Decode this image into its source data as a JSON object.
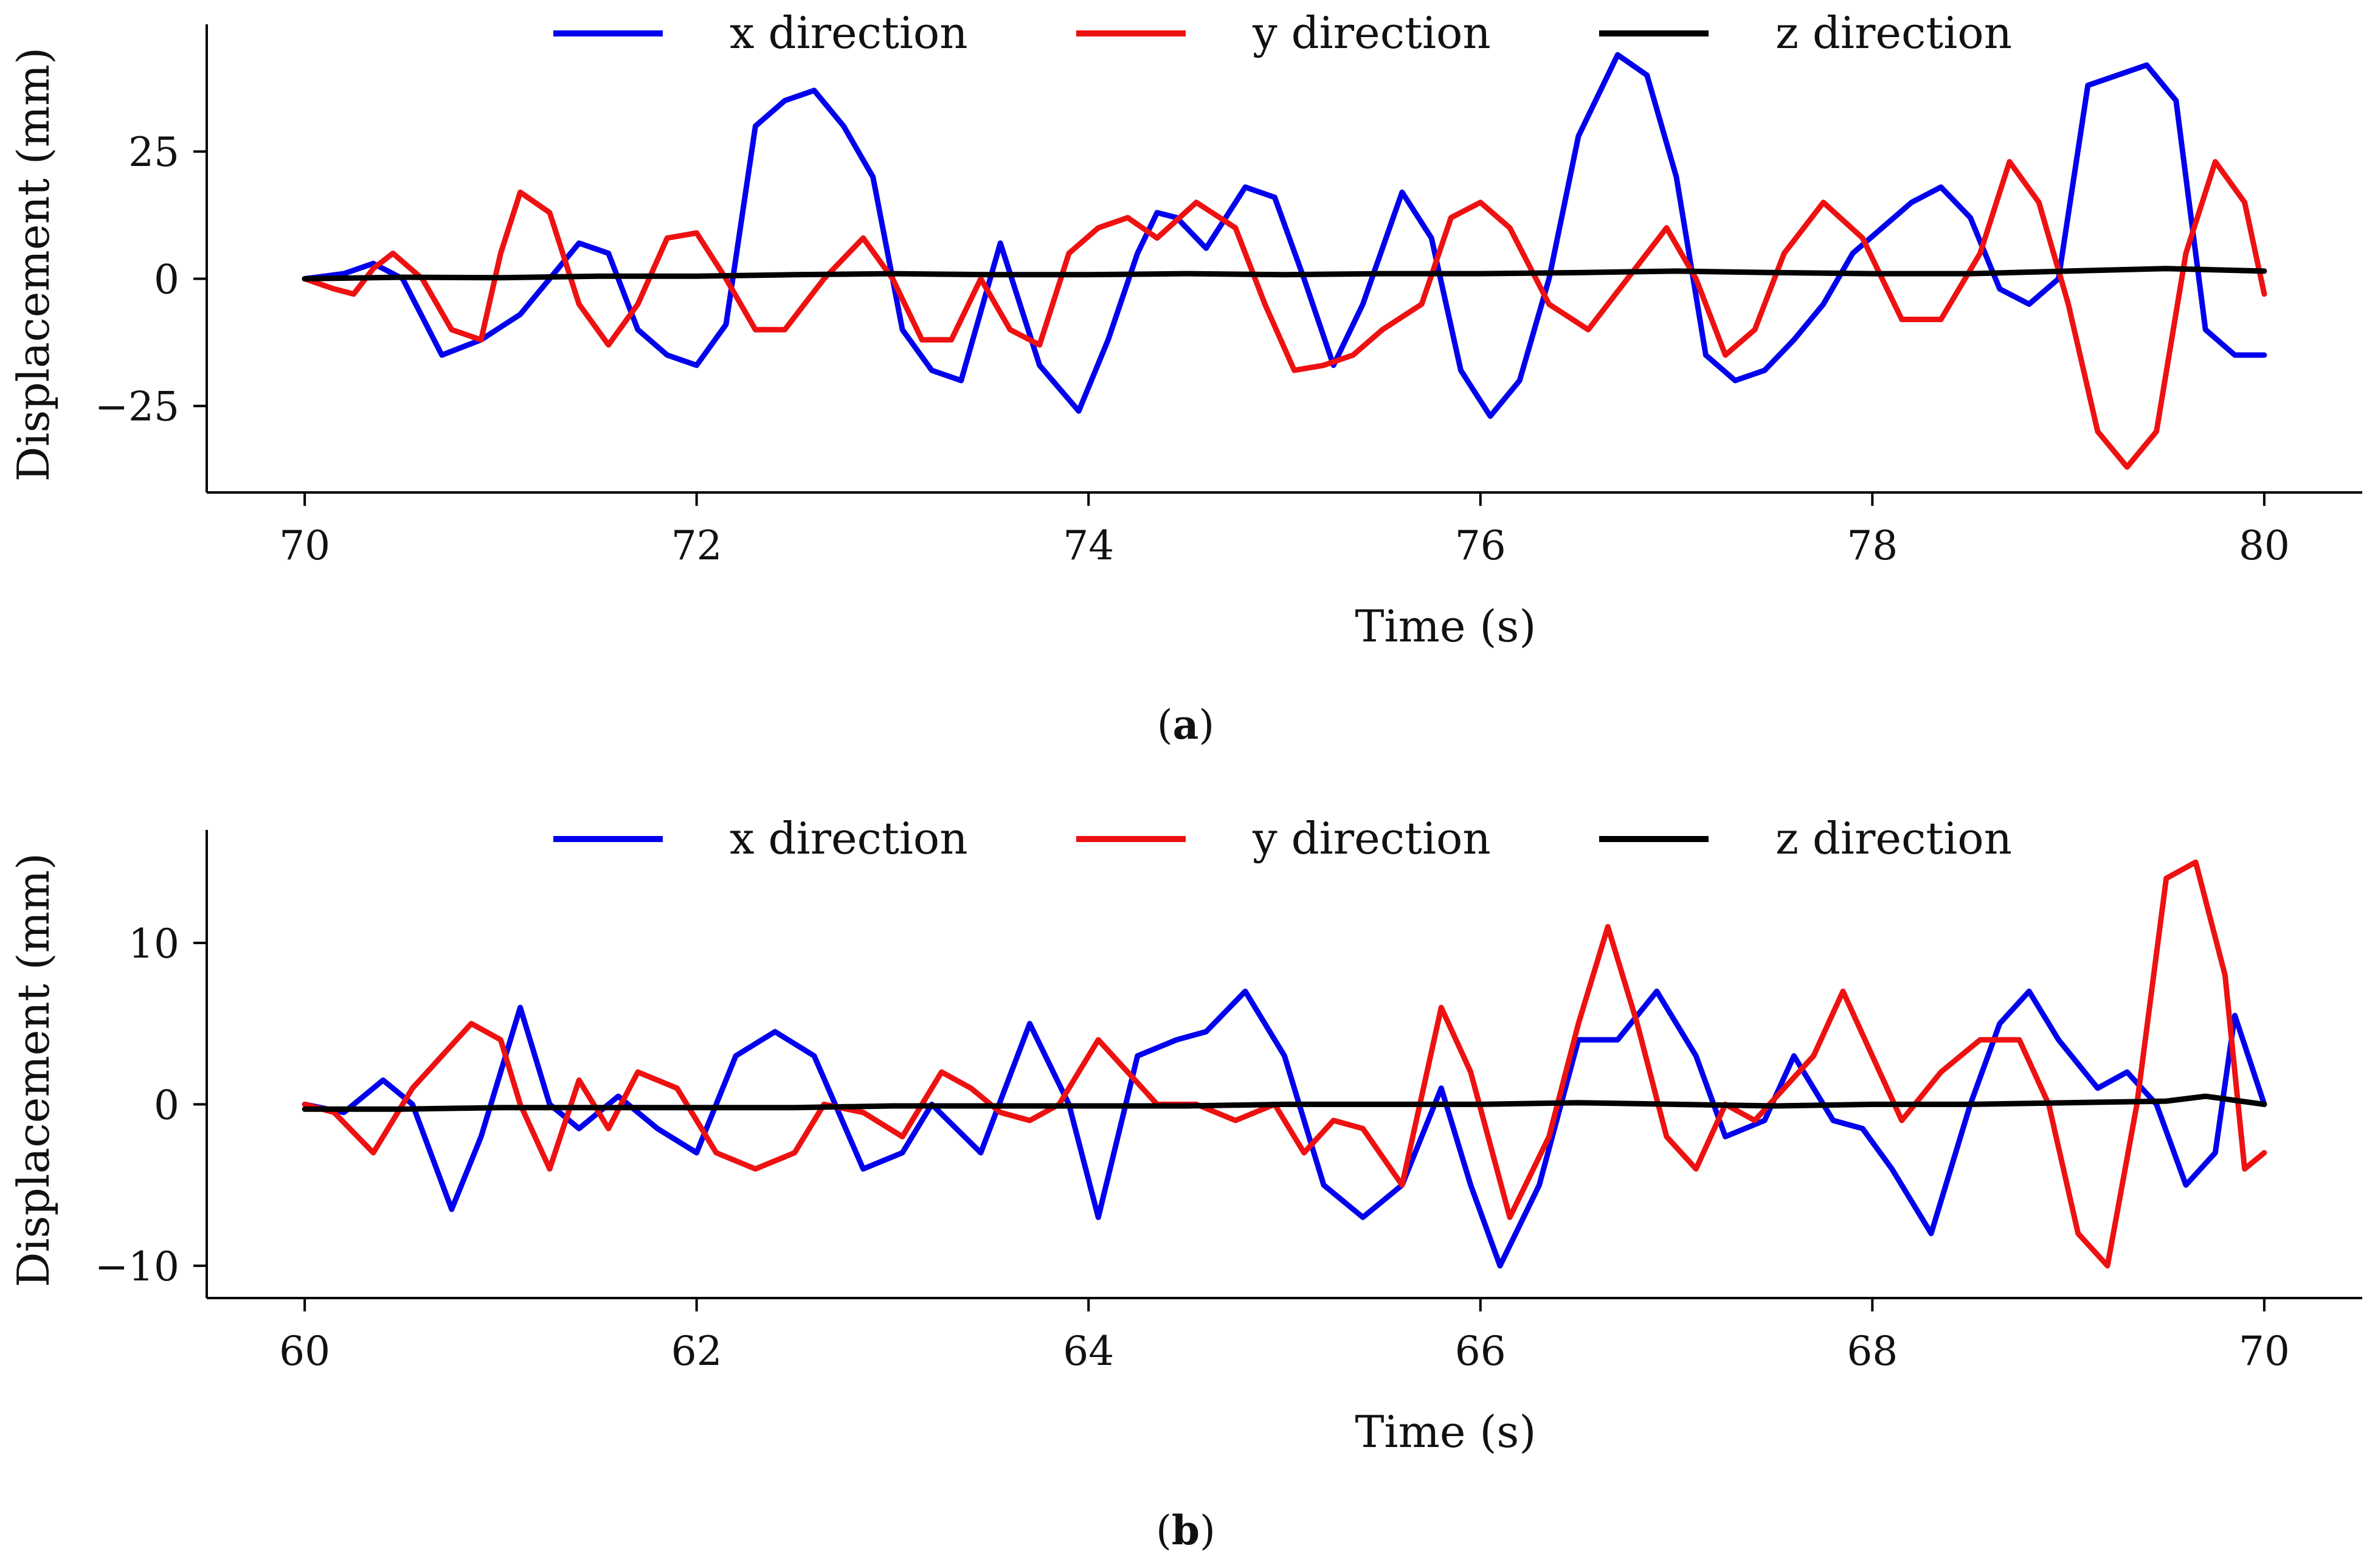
{
  "chart_data": [
    {
      "type": "line",
      "panel_label": "a",
      "title": "",
      "xlabel": "Time (s)",
      "ylabel": "Displacement (mm)",
      "xlim": [
        69.5,
        80.5
      ],
      "ylim": [
        -42,
        50
      ],
      "xticks": [
        70,
        72,
        74,
        76,
        78,
        80
      ],
      "xtick_labels": [
        "70",
        "72",
        "74",
        "76",
        "78",
        "80"
      ],
      "yticks": [
        -25,
        0,
        25
      ],
      "ytick_labels": [
        "−25",
        "0",
        "25"
      ],
      "legend_position": "top-center",
      "series": [
        {
          "name": "x direction",
          "color": "#0000ee",
          "x": [
            70.0,
            70.2,
            70.35,
            70.5,
            70.7,
            70.9,
            71.1,
            71.25,
            71.4,
            71.55,
            71.7,
            71.85,
            72.0,
            72.15,
            72.3,
            72.45,
            72.6,
            72.75,
            72.9,
            73.05,
            73.2,
            73.35,
            73.55,
            73.75,
            73.95,
            74.1,
            74.25,
            74.35,
            74.45,
            74.6,
            74.8,
            74.95,
            75.1,
            75.25,
            75.4,
            75.6,
            75.75,
            75.9,
            76.05,
            76.2,
            76.35,
            76.5,
            76.7,
            76.85,
            77.0,
            77.15,
            77.3,
            77.45,
            77.6,
            77.75,
            77.9,
            78.05,
            78.2,
            78.35,
            78.5,
            78.65,
            78.8,
            78.95,
            79.1,
            79.25,
            79.4,
            79.55,
            79.7,
            79.85,
            80.0
          ],
          "values": [
            0,
            1,
            3,
            0,
            -15,
            -12,
            -7,
            0,
            7,
            5,
            -10,
            -15,
            -17,
            -9,
            30,
            35,
            37,
            30,
            20,
            -10,
            -18,
            -20,
            7,
            -17,
            -26,
            -12,
            5,
            13,
            12,
            6,
            18,
            16,
            0,
            -17,
            -5,
            17,
            8,
            -18,
            -27,
            -20,
            0,
            28,
            44,
            40,
            20,
            -15,
            -20,
            -18,
            -12,
            -5,
            5,
            10,
            15,
            18,
            12,
            -2,
            -5,
            0,
            38,
            40,
            42,
            35,
            -10,
            -15,
            -15
          ]
        },
        {
          "name": "y direction",
          "color": "#ee1111",
          "x": [
            70.0,
            70.15,
            70.25,
            70.35,
            70.45,
            70.6,
            70.75,
            70.9,
            71.0,
            71.1,
            71.25,
            71.4,
            71.55,
            71.7,
            71.85,
            72.0,
            72.15,
            72.3,
            72.45,
            72.65,
            72.85,
            73.0,
            73.15,
            73.3,
            73.45,
            73.6,
            73.75,
            73.9,
            74.05,
            74.2,
            74.35,
            74.55,
            74.75,
            74.9,
            75.05,
            75.2,
            75.35,
            75.5,
            75.7,
            75.85,
            76.0,
            76.15,
            76.35,
            76.55,
            76.75,
            76.95,
            77.1,
            77.25,
            77.4,
            77.55,
            77.75,
            77.95,
            78.15,
            78.35,
            78.55,
            78.7,
            78.85,
            79.0,
            79.15,
            79.3,
            79.45,
            79.6,
            79.75,
            79.9,
            80.0
          ],
          "values": [
            0,
            -2,
            -3,
            2,
            5,
            0,
            -10,
            -12,
            5,
            17,
            13,
            -5,
            -13,
            -5,
            8,
            9,
            0,
            -10,
            -10,
            0,
            8,
            0,
            -12,
            -12,
            0,
            -10,
            -13,
            5,
            10,
            12,
            8,
            15,
            10,
            -5,
            -18,
            -17,
            -15,
            -10,
            -5,
            12,
            15,
            10,
            -5,
            -10,
            0,
            10,
            0,
            -15,
            -10,
            5,
            15,
            8,
            -8,
            -8,
            5,
            23,
            15,
            -5,
            -30,
            -37,
            -30,
            5,
            23,
            15,
            -3
          ]
        },
        {
          "name": "z direction",
          "color": "#000000",
          "x": [
            70.0,
            70.5,
            71.0,
            71.5,
            72.0,
            72.5,
            73.0,
            73.5,
            74.0,
            74.5,
            75.0,
            75.5,
            76.0,
            76.5,
            77.0,
            77.5,
            78.0,
            78.5,
            79.0,
            79.5,
            80.0
          ],
          "values": [
            0,
            0.3,
            0.2,
            0.5,
            0.5,
            0.8,
            1.0,
            0.8,
            0.8,
            1.0,
            0.8,
            1.0,
            1.0,
            1.2,
            1.5,
            1.2,
            1.0,
            1.0,
            1.5,
            2.0,
            1.5
          ]
        }
      ]
    },
    {
      "type": "line",
      "panel_label": "b",
      "title": "",
      "xlabel": "Time (s)",
      "ylabel": "Displacement (mm)",
      "xlim": [
        59.5,
        70.5
      ],
      "ylim": [
        -12,
        17
      ],
      "xticks": [
        60,
        62,
        64,
        66,
        68,
        70
      ],
      "xtick_labels": [
        "60",
        "62",
        "64",
        "66",
        "68",
        "70"
      ],
      "yticks": [
        -10,
        0,
        10
      ],
      "ytick_labels": [
        "−10",
        "0",
        "10"
      ],
      "legend_position": "top-center",
      "series": [
        {
          "name": "x direction",
          "color": "#0000ee",
          "x": [
            60.0,
            60.2,
            60.4,
            60.55,
            60.75,
            60.9,
            61.1,
            61.25,
            61.4,
            61.6,
            61.8,
            62.0,
            62.2,
            62.4,
            62.6,
            62.85,
            63.05,
            63.2,
            63.45,
            63.7,
            63.9,
            64.05,
            64.25,
            64.45,
            64.6,
            64.8,
            65.0,
            65.2,
            65.4,
            65.6,
            65.8,
            65.95,
            66.1,
            66.3,
            66.5,
            66.7,
            66.9,
            67.1,
            67.25,
            67.45,
            67.6,
            67.8,
            67.95,
            68.1,
            68.3,
            68.5,
            68.65,
            68.8,
            68.95,
            69.15,
            69.3,
            69.45,
            69.6,
            69.75,
            69.85,
            70.0
          ],
          "values": [
            0,
            -0.5,
            1.5,
            0,
            -6.5,
            -2,
            6,
            0,
            -1.5,
            0.5,
            -1.5,
            -3,
            3,
            4.5,
            3,
            -4,
            -3,
            0,
            -3,
            5,
            0,
            -7,
            3,
            4,
            4.5,
            7,
            3,
            -5,
            -7,
            -5,
            1,
            -5,
            -10,
            -5,
            4,
            4,
            7,
            3,
            -2,
            -1,
            3,
            -1,
            -1.5,
            -4,
            -8,
            0,
            5,
            7,
            4,
            1,
            2,
            0,
            -5,
            -3,
            5.5,
            0
          ]
        },
        {
          "name": "y direction",
          "color": "#ee1111",
          "x": [
            60.0,
            60.15,
            60.35,
            60.55,
            60.7,
            60.85,
            61.0,
            61.1,
            61.25,
            61.4,
            61.55,
            61.7,
            61.9,
            62.1,
            62.3,
            62.5,
            62.65,
            62.85,
            63.05,
            63.25,
            63.4,
            63.55,
            63.7,
            63.85,
            64.05,
            64.2,
            64.35,
            64.55,
            64.75,
            64.95,
            65.1,
            65.25,
            65.4,
            65.6,
            65.8,
            65.95,
            66.15,
            66.35,
            66.5,
            66.65,
            66.8,
            66.95,
            67.1,
            67.25,
            67.4,
            67.55,
            67.7,
            67.85,
            68.0,
            68.15,
            68.35,
            68.55,
            68.75,
            68.9,
            69.05,
            69.2,
            69.35,
            69.5,
            69.65,
            69.8,
            69.9,
            70.0
          ],
          "values": [
            0,
            -0.5,
            -3,
            1,
            3,
            5,
            4,
            0,
            -4,
            1.5,
            -1.5,
            2,
            1,
            -3,
            -4,
            -3,
            0,
            -0.5,
            -2,
            2,
            1,
            -0.5,
            -1,
            0,
            4,
            2,
            0,
            0,
            -1,
            0,
            -3,
            -1,
            -1.5,
            -5,
            6,
            2,
            -7,
            -2,
            5,
            11,
            5,
            -2,
            -4,
            0,
            -1,
            1,
            3,
            7,
            3,
            -1,
            2,
            4,
            4,
            0,
            -8,
            -10,
            0,
            14,
            15,
            8,
            -4,
            -3
          ]
        },
        {
          "name": "z direction",
          "color": "#000000",
          "x": [
            60.0,
            60.5,
            61.0,
            61.5,
            62.0,
            62.5,
            63.0,
            63.5,
            64.0,
            64.5,
            65.0,
            65.5,
            66.0,
            66.5,
            67.0,
            67.5,
            68.0,
            68.5,
            69.0,
            69.5,
            69.7,
            70.0
          ],
          "values": [
            -0.3,
            -0.3,
            -0.2,
            -0.2,
            -0.2,
            -0.2,
            -0.1,
            -0.1,
            -0.1,
            -0.1,
            0,
            0,
            0,
            0.1,
            0,
            -0.1,
            0,
            0,
            0.1,
            0.2,
            0.5,
            0
          ]
        }
      ]
    }
  ]
}
